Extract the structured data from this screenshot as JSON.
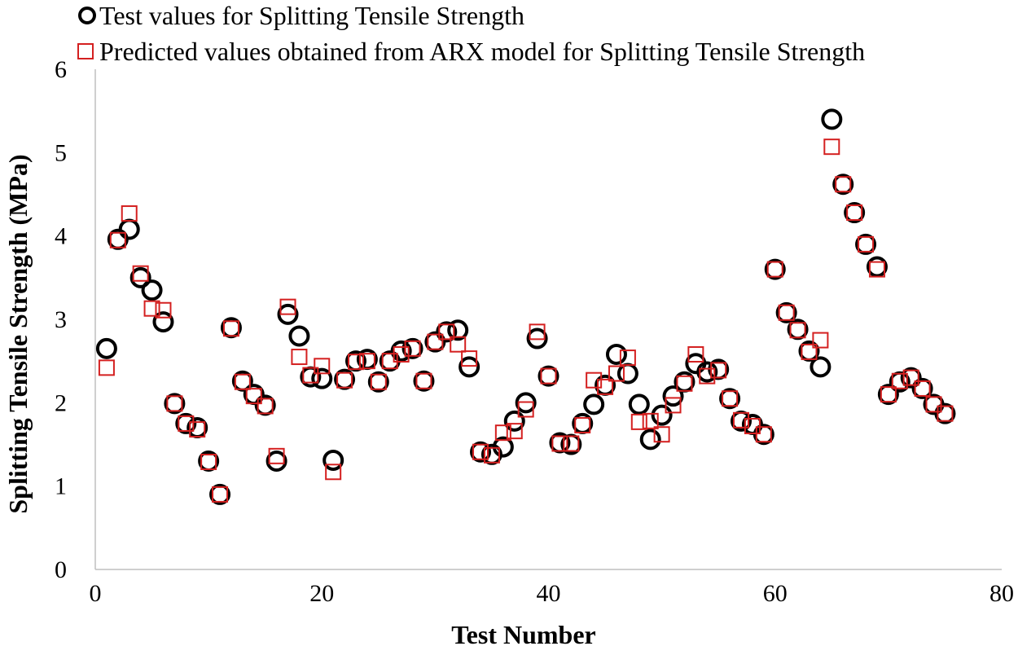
{
  "chart_data": {
    "type": "scatter",
    "title": "",
    "xlabel": "Test Number",
    "ylabel": "Splitting Tensile Strength (MPa)",
    "xlim": [
      0,
      80
    ],
    "ylim": [
      0,
      6
    ],
    "x_ticks": [
      "0",
      "20",
      "40",
      "60",
      "80"
    ],
    "y_ticks": [
      "0",
      "1",
      "2",
      "3",
      "4",
      "5",
      "6"
    ],
    "grid": false,
    "legend_position": "top-left",
    "series": [
      {
        "name": "Test values for Splitting Tensile Strength",
        "marker": "circle",
        "color": "#000000",
        "x": [
          1,
          2,
          3,
          4,
          5,
          6,
          7,
          8,
          9,
          10,
          11,
          12,
          13,
          14,
          15,
          16,
          17,
          18,
          19,
          20,
          21,
          22,
          23,
          24,
          25,
          26,
          27,
          28,
          29,
          30,
          31,
          32,
          33,
          34,
          35,
          36,
          37,
          38,
          39,
          40,
          41,
          42,
          43,
          44,
          45,
          46,
          47,
          48,
          49,
          50,
          51,
          52,
          53,
          54,
          55,
          56,
          57,
          58,
          59,
          60,
          61,
          62,
          63,
          64,
          65,
          66,
          67,
          68,
          69,
          70,
          71,
          72,
          73,
          74,
          75
        ],
        "y": [
          2.65,
          3.96,
          4.08,
          3.5,
          3.35,
          2.97,
          1.99,
          1.75,
          1.7,
          1.3,
          0.9,
          2.9,
          2.26,
          2.1,
          1.97,
          1.3,
          3.06,
          2.8,
          2.31,
          2.29,
          1.31,
          2.28,
          2.5,
          2.52,
          2.25,
          2.5,
          2.62,
          2.65,
          2.26,
          2.73,
          2.85,
          2.87,
          2.43,
          1.41,
          1.38,
          1.47,
          1.78,
          2.0,
          2.77,
          2.32,
          1.52,
          1.5,
          1.75,
          1.98,
          2.21,
          2.58,
          2.35,
          1.98,
          1.56,
          1.85,
          2.08,
          2.25,
          2.47,
          2.37,
          2.4,
          2.05,
          1.78,
          1.74,
          1.62,
          3.6,
          3.08,
          2.88,
          2.62,
          2.43,
          5.4,
          4.62,
          4.28,
          3.9,
          3.63,
          2.1,
          2.25,
          2.3,
          2.17,
          1.98,
          1.87
        ]
      },
      {
        "name": "Predicted values obtained from ARX model for Splitting Tensile Strength",
        "marker": "square",
        "color": "#d42020",
        "x": [
          1,
          2,
          3,
          4,
          5,
          6,
          7,
          8,
          9,
          10,
          11,
          12,
          13,
          14,
          15,
          16,
          17,
          18,
          19,
          20,
          21,
          22,
          23,
          24,
          25,
          26,
          27,
          28,
          29,
          30,
          31,
          32,
          33,
          34,
          35,
          36,
          37,
          38,
          39,
          40,
          41,
          42,
          43,
          44,
          45,
          46,
          47,
          48,
          49,
          50,
          51,
          52,
          53,
          54,
          55,
          56,
          57,
          58,
          59,
          60,
          61,
          62,
          63,
          64,
          65,
          66,
          67,
          68,
          69,
          70,
          71,
          72,
          73,
          74,
          75
        ],
        "y": [
          2.42,
          3.95,
          4.27,
          3.55,
          3.13,
          3.11,
          1.99,
          1.75,
          1.68,
          1.29,
          0.9,
          2.89,
          2.25,
          2.08,
          1.96,
          1.36,
          3.15,
          2.55,
          2.33,
          2.44,
          1.17,
          2.27,
          2.49,
          2.5,
          2.25,
          2.5,
          2.58,
          2.65,
          2.26,
          2.73,
          2.85,
          2.7,
          2.53,
          1.41,
          1.37,
          1.64,
          1.66,
          1.92,
          2.85,
          2.32,
          1.51,
          1.51,
          1.73,
          2.27,
          2.19,
          2.35,
          2.54,
          1.77,
          1.78,
          1.62,
          1.97,
          2.23,
          2.58,
          2.32,
          2.39,
          2.05,
          1.79,
          1.72,
          1.62,
          3.6,
          3.08,
          2.87,
          2.61,
          2.75,
          5.07,
          4.62,
          4.28,
          3.9,
          3.6,
          2.1,
          2.26,
          2.3,
          2.17,
          1.98,
          1.87
        ]
      }
    ]
  }
}
